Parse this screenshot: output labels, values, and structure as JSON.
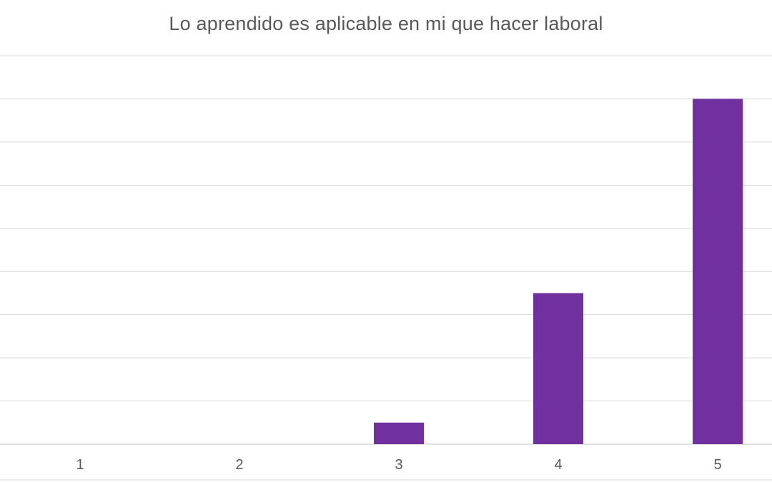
{
  "chart_data": {
    "type": "bar",
    "title": "Lo aprendido es aplicable en mi que hacer laboral",
    "xlabel": "",
    "ylabel": "",
    "categories": [
      "1",
      "2",
      "3",
      "4",
      "5"
    ],
    "values": [
      0,
      0,
      0.5,
      3.5,
      8
    ],
    "ylim": [
      0,
      9
    ],
    "grid": true,
    "legend": "none",
    "bar_color": "#7030A0",
    "grid_color": "#d9d9d9"
  }
}
